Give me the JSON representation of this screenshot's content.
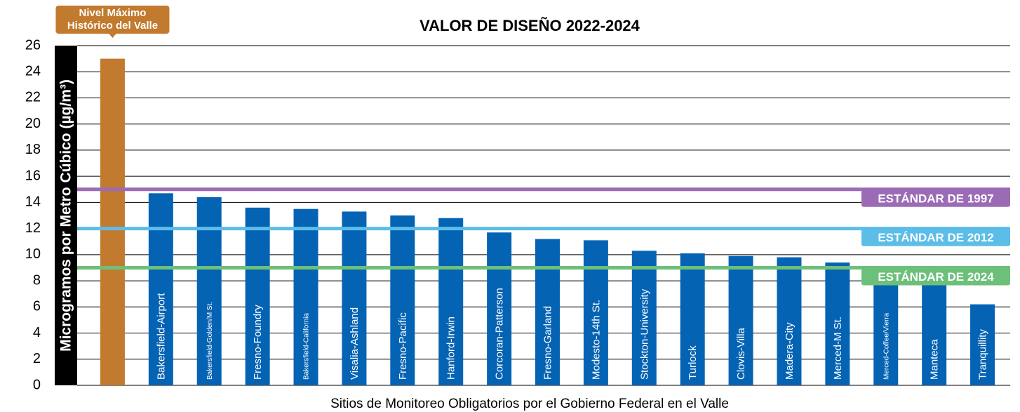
{
  "chart_data": {
    "type": "bar",
    "title": "VALOR DE DISEÑO 2022-2024",
    "y_label": "Microgramos por Metro Cúbico (µg/m³)",
    "x_label": "Sitios de Monitoreo Obligatorios por el Gobierno Federal en el Valle",
    "annotation": [
      "Nivel Máximo",
      "Histórico del Valle"
    ],
    "categories": [
      null,
      "Bakersfield-Airport",
      "Bakersfield-Golden/M St.",
      "Fresno-Foundry",
      "Bakersfield-California",
      "Visalia-Ashland",
      "Fresno-Pacific",
      "Hanford-Irwin",
      "Corcoran-Patterson",
      "Fresno-Garland",
      "Modesto-14th St.",
      "Stockton-University",
      "Turlock",
      "Clovis-Villa",
      "Madera-City",
      "Merced-M St.",
      "Merced-Coffee/Vierra",
      "Manteca",
      "Tranquillity"
    ],
    "values": [
      25,
      14.7,
      14.4,
      13.6,
      13.5,
      13.3,
      13.0,
      12.8,
      11.7,
      11.2,
      11.1,
      10.3,
      10.1,
      9.9,
      9.8,
      9.4,
      8.0,
      8.0,
      6.2
    ],
    "colors": [
      "#c27a2e",
      "#0563b4",
      "#0563b4",
      "#0563b4",
      "#0563b4",
      "#0563b4",
      "#0563b4",
      "#0563b4",
      "#0563b4",
      "#0563b4",
      "#0563b4",
      "#0563b4",
      "#0563b4",
      "#0563b4",
      "#0563b4",
      "#0563b4",
      "#0563b4",
      "#0563b4",
      "#0563b4"
    ],
    "reference_lines": [
      {
        "value": 15,
        "label": "ESTÁNDAR DE 1997",
        "color": "#9b6bb5"
      },
      {
        "value": 12,
        "label": "ESTÁNDAR DE 2012",
        "color": "#5bbde8"
      },
      {
        "value": 9,
        "label": "ESTÁNDAR DE 2024",
        "color": "#6cc07a"
      }
    ],
    "ylim": [
      0,
      26
    ],
    "yticks": [
      0,
      2,
      4,
      6,
      8,
      10,
      12,
      14,
      16,
      18,
      20,
      22,
      24,
      26
    ],
    "grid": true
  }
}
